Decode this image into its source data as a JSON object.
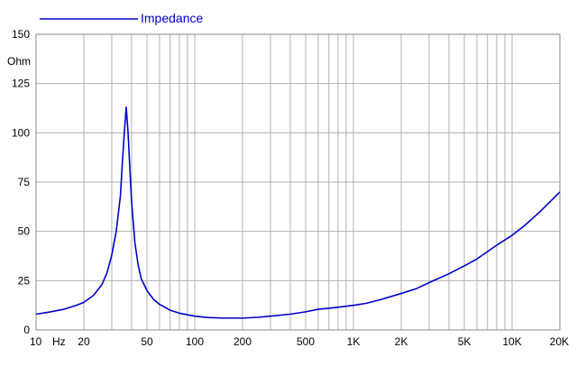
{
  "chart_data": {
    "type": "line",
    "title": "",
    "xlabel": "Hz",
    "ylabel": "Ohm",
    "x_scale": "log",
    "xlim": [
      10,
      20000
    ],
    "ylim": [
      0,
      150
    ],
    "grid": true,
    "legend_position": "top-left",
    "x_ticks": [
      {
        "value": 10,
        "label": "10"
      },
      {
        "value": 20,
        "label": "20"
      },
      {
        "value": 50,
        "label": "50"
      },
      {
        "value": 100,
        "label": "100"
      },
      {
        "value": 200,
        "label": "200"
      },
      {
        "value": 500,
        "label": "500"
      },
      {
        "value": 1000,
        "label": "1K"
      },
      {
        "value": 2000,
        "label": "2K"
      },
      {
        "value": 5000,
        "label": "5K"
      },
      {
        "value": 10000,
        "label": "10K"
      },
      {
        "value": 20000,
        "label": "20K"
      }
    ],
    "y_ticks": [
      0,
      25,
      50,
      75,
      100,
      125,
      150
    ],
    "series": [
      {
        "name": "Impedance",
        "color": "#0000cc",
        "x": [
          10,
          12,
          15,
          18,
          20,
          23,
          26,
          28,
          30,
          32,
          34,
          35,
          36,
          37,
          38,
          39,
          40,
          42,
          44,
          46,
          50,
          55,
          60,
          70,
          80,
          100,
          120,
          150,
          200,
          250,
          300,
          400,
          500,
          600,
          700,
          800,
          1000,
          1200,
          1500,
          2000,
          2500,
          3000,
          4000,
          5000,
          6000,
          8000,
          10000,
          12000,
          15000,
          20000
        ],
        "y": [
          8,
          9,
          10.5,
          12.5,
          14,
          17.5,
          23,
          29,
          38,
          50,
          68,
          85,
          100,
          113,
          100,
          82,
          65,
          44,
          33,
          26,
          20,
          15.5,
          13,
          10,
          8.5,
          7,
          6.3,
          6,
          6,
          6.4,
          7,
          8,
          9.2,
          10.5,
          11,
          11.5,
          12.5,
          13.5,
          15.5,
          18.5,
          21,
          24,
          28.5,
          32.5,
          36,
          43,
          48,
          53,
          60,
          70
        ]
      }
    ]
  }
}
